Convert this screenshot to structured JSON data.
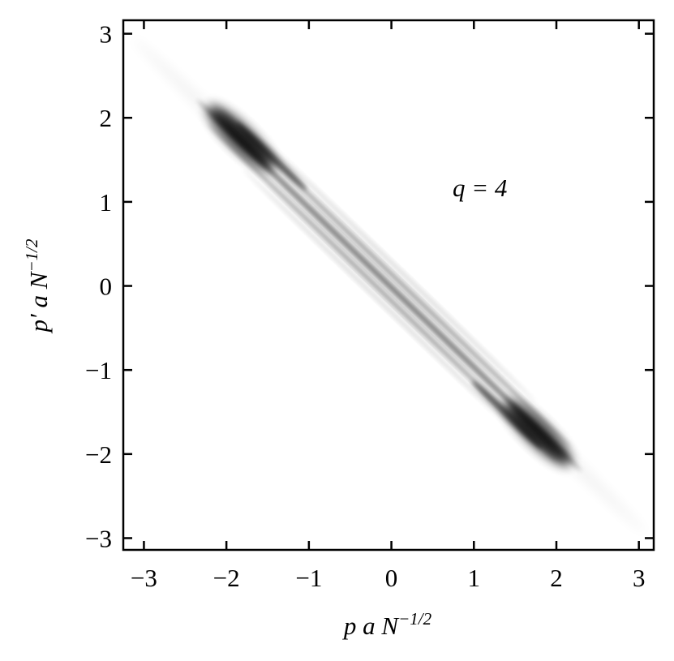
{
  "chart_data": {
    "type": "density",
    "annotation": "q = 4",
    "xlabel": {
      "base": "p a N",
      "sup": "−1/2"
    },
    "ylabel": {
      "base": "p′ a N",
      "sup": "−1/2"
    },
    "xlim": [
      -3.25,
      3.18
    ],
    "ylim": [
      -3.14,
      3.16
    ],
    "xticks": [
      {
        "value": -3,
        "label": "−3"
      },
      {
        "value": -2,
        "label": "−2"
      },
      {
        "value": -1,
        "label": "−1"
      },
      0,
      1,
      2,
      3
    ],
    "yticks": [
      {
        "value": -3,
        "label": "−3"
      },
      {
        "value": -2,
        "label": "−2"
      },
      {
        "value": -1,
        "label": "−1"
      },
      0,
      1,
      2,
      3
    ]
  }
}
